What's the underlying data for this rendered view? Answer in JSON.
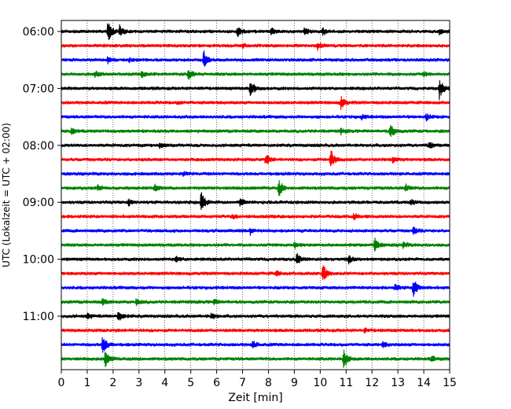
{
  "chart_data": {
    "type": "line",
    "title": "",
    "xlabel": "Zeit  [min]",
    "ylabel": "UTC (Lokalzeit = UTC + 02:00)",
    "xlim": [
      0,
      15
    ],
    "x_ticks": [
      0,
      1,
      2,
      3,
      4,
      5,
      6,
      7,
      8,
      9,
      10,
      11,
      12,
      13,
      14,
      15
    ],
    "x_tick_labels": [
      "0",
      "1",
      "2",
      "3",
      "4",
      "5",
      "6",
      "7",
      "8",
      "9",
      "10",
      "11",
      "12",
      "13",
      "14",
      "15"
    ],
    "grid": "vertical dotted",
    "row_interval_minutes": 15,
    "y_ticks": [
      {
        "label": "06:00",
        "row": 0
      },
      {
        "label": "07:00",
        "row": 4
      },
      {
        "label": "08:00",
        "row": 8
      },
      {
        "label": "09:00",
        "row": 12
      },
      {
        "label": "10:00",
        "row": 16
      },
      {
        "label": "11:00",
        "row": 20
      }
    ],
    "colors": [
      "#000000",
      "#ff0000",
      "#0000ff",
      "#008000"
    ],
    "rows": [
      {
        "start": "06:00",
        "color": "#000000",
        "events": [
          {
            "t": 1.8,
            "a": 1.0
          },
          {
            "t": 2.25,
            "a": 0.55
          },
          {
            "t": 6.8,
            "a": 0.55
          },
          {
            "t": 8.1,
            "a": 0.35
          },
          {
            "t": 9.4,
            "a": 0.4
          },
          {
            "t": 10.1,
            "a": 0.35
          },
          {
            "t": 14.6,
            "a": 0.3
          }
        ]
      },
      {
        "start": "06:15",
        "color": "#ff0000",
        "events": [
          {
            "t": 9.9,
            "a": 0.35
          },
          {
            "t": 7.0,
            "a": 0.2
          }
        ]
      },
      {
        "start": "06:30",
        "color": "#0000ff",
        "events": [
          {
            "t": 1.8,
            "a": 0.35
          },
          {
            "t": 5.5,
            "a": 1.0
          },
          {
            "t": 2.6,
            "a": 0.2
          }
        ]
      },
      {
        "start": "06:45",
        "color": "#008000",
        "events": [
          {
            "t": 1.3,
            "a": 0.35
          },
          {
            "t": 3.1,
            "a": 0.3
          },
          {
            "t": 4.9,
            "a": 0.6
          },
          {
            "t": 14.0,
            "a": 0.25
          }
        ]
      },
      {
        "start": "07:00",
        "color": "#000000",
        "events": [
          {
            "t": 7.3,
            "a": 0.9
          },
          {
            "t": 14.6,
            "a": 1.0
          }
        ]
      },
      {
        "start": "07:15",
        "color": "#ff0000",
        "events": [
          {
            "t": 10.8,
            "a": 0.6
          },
          {
            "t": 4.5,
            "a": 0.15
          }
        ]
      },
      {
        "start": "07:30",
        "color": "#0000ff",
        "events": [
          {
            "t": 14.1,
            "a": 0.3
          },
          {
            "t": 11.6,
            "a": 0.2
          }
        ]
      },
      {
        "start": "07:45",
        "color": "#008000",
        "events": [
          {
            "t": 0.4,
            "a": 0.3
          },
          {
            "t": 12.7,
            "a": 0.75
          },
          {
            "t": 10.8,
            "a": 0.25
          }
        ]
      },
      {
        "start": "08:00",
        "color": "#000000",
        "events": [
          {
            "t": 3.8,
            "a": 0.3
          },
          {
            "t": 14.2,
            "a": 0.35
          }
        ]
      },
      {
        "start": "08:15",
        "color": "#ff0000",
        "events": [
          {
            "t": 7.9,
            "a": 0.55
          },
          {
            "t": 10.4,
            "a": 1.0
          },
          {
            "t": 12.8,
            "a": 0.3
          }
        ]
      },
      {
        "start": "08:30",
        "color": "#0000ff",
        "events": [
          {
            "t": 4.7,
            "a": 0.2
          }
        ]
      },
      {
        "start": "08:45",
        "color": "#008000",
        "events": [
          {
            "t": 1.4,
            "a": 0.3
          },
          {
            "t": 3.6,
            "a": 0.35
          },
          {
            "t": 8.4,
            "a": 0.8
          },
          {
            "t": 13.3,
            "a": 0.35
          }
        ]
      },
      {
        "start": "09:00",
        "color": "#000000",
        "events": [
          {
            "t": 2.6,
            "a": 0.3
          },
          {
            "t": 5.4,
            "a": 1.0
          },
          {
            "t": 6.9,
            "a": 0.35
          },
          {
            "t": 13.5,
            "a": 0.3
          }
        ]
      },
      {
        "start": "09:15",
        "color": "#ff0000",
        "events": [
          {
            "t": 11.3,
            "a": 0.35
          },
          {
            "t": 6.6,
            "a": 0.2
          }
        ]
      },
      {
        "start": "09:30",
        "color": "#0000ff",
        "events": [
          {
            "t": 7.3,
            "a": 0.35
          },
          {
            "t": 13.6,
            "a": 0.35
          }
        ]
      },
      {
        "start": "09:45",
        "color": "#008000",
        "events": [
          {
            "t": 9.0,
            "a": 0.3
          },
          {
            "t": 12.1,
            "a": 0.65
          },
          {
            "t": 13.2,
            "a": 0.3
          }
        ]
      },
      {
        "start": "10:00",
        "color": "#000000",
        "events": [
          {
            "t": 4.4,
            "a": 0.3
          },
          {
            "t": 9.1,
            "a": 0.6
          },
          {
            "t": 11.1,
            "a": 0.35
          }
        ]
      },
      {
        "start": "10:15",
        "color": "#ff0000",
        "events": [
          {
            "t": 10.1,
            "a": 0.9
          },
          {
            "t": 8.3,
            "a": 0.2
          }
        ]
      },
      {
        "start": "10:30",
        "color": "#0000ff",
        "events": [
          {
            "t": 13.6,
            "a": 1.0
          },
          {
            "t": 12.9,
            "a": 0.3
          }
        ]
      },
      {
        "start": "10:45",
        "color": "#008000",
        "events": [
          {
            "t": 1.6,
            "a": 0.3
          },
          {
            "t": 2.9,
            "a": 0.3
          },
          {
            "t": 5.9,
            "a": 0.2
          }
        ]
      },
      {
        "start": "11:00",
        "color": "#000000",
        "events": [
          {
            "t": 1.0,
            "a": 0.3
          },
          {
            "t": 2.2,
            "a": 0.6
          },
          {
            "t": 5.8,
            "a": 0.3
          }
        ]
      },
      {
        "start": "11:15",
        "color": "#ff0000",
        "events": [
          {
            "t": 11.7,
            "a": 0.2
          }
        ]
      },
      {
        "start": "11:30",
        "color": "#0000ff",
        "events": [
          {
            "t": 1.6,
            "a": 0.9
          },
          {
            "t": 7.4,
            "a": 0.35
          },
          {
            "t": 12.4,
            "a": 0.3
          }
        ]
      },
      {
        "start": "11:45",
        "color": "#008000",
        "events": [
          {
            "t": 1.7,
            "a": 0.8
          },
          {
            "t": 10.9,
            "a": 1.0
          },
          {
            "t": 14.3,
            "a": 0.25
          }
        ]
      }
    ]
  }
}
